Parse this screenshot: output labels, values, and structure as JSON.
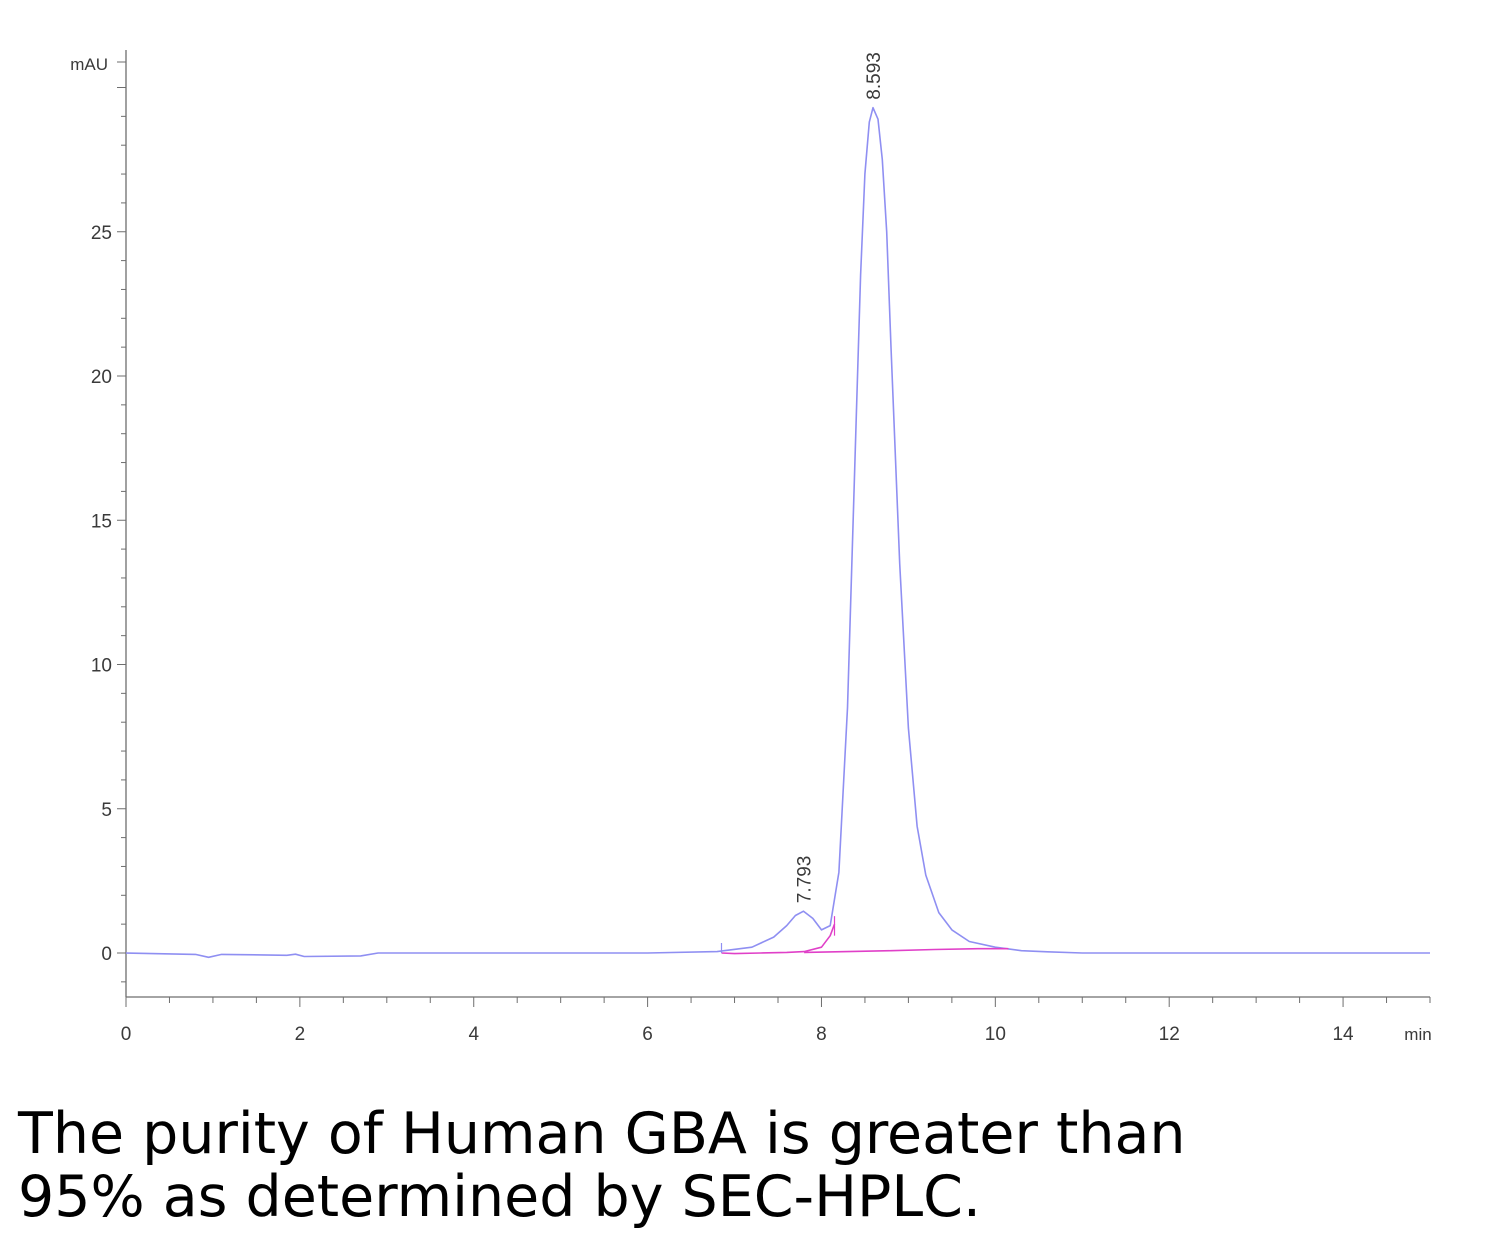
{
  "chart_data": {
    "type": "line",
    "title": "",
    "xlabel": "",
    "ylabel": "",
    "x_unit": "min",
    "y_unit": "mAU",
    "xlim": [
      0,
      15
    ],
    "ylim": [
      -1.5,
      31.5
    ],
    "x_ticks": [
      "0",
      "2",
      "4",
      "6",
      "8",
      "10",
      "12",
      "14"
    ],
    "y_ticks": [
      "0",
      "5",
      "10",
      "15",
      "20",
      "25"
    ],
    "grid": false,
    "legend": "none",
    "peak_labels": [
      {
        "text": "7.793",
        "x": 7.793,
        "y": 1.45
      },
      {
        "text": "8.593",
        "x": 8.593,
        "y": 29.3
      }
    ],
    "series": [
      {
        "color": "#8f8ff2",
        "x": [
          0,
          0.8,
          0.95,
          1.1,
          1.85,
          1.95,
          2.05,
          2.7,
          2.9,
          4.0,
          6.0,
          6.8,
          7.2,
          7.45,
          7.6,
          7.7,
          7.793,
          7.9,
          8.0,
          8.1,
          8.2,
          8.3,
          8.4,
          8.45,
          8.5,
          8.55,
          8.593,
          8.65,
          8.7,
          8.75,
          8.8,
          8.9,
          9.0,
          9.1,
          9.2,
          9.35,
          9.5,
          9.7,
          10.0,
          10.3,
          10.6,
          11.0,
          12.0,
          13.0,
          14.0,
          15.0
        ],
        "y": [
          0,
          -0.05,
          -0.15,
          -0.05,
          -0.08,
          -0.04,
          -0.12,
          -0.1,
          0,
          0,
          0,
          0.05,
          0.2,
          0.55,
          0.95,
          1.3,
          1.45,
          1.2,
          0.8,
          0.95,
          2.8,
          8.5,
          18.5,
          23.5,
          27.0,
          28.8,
          29.3,
          28.9,
          27.5,
          25.0,
          21.0,
          13.5,
          7.8,
          4.4,
          2.7,
          1.4,
          0.8,
          0.4,
          0.2,
          0.08,
          0.04,
          0,
          0,
          0,
          0,
          0
        ]
      },
      {
        "color": "#e040c8",
        "x": [
          6.85,
          7.0,
          7.3,
          7.6,
          7.8,
          8.0,
          8.1,
          8.15
        ],
        "y": [
          0,
          -0.02,
          0,
          0.02,
          0.05,
          0.2,
          0.6,
          1.0
        ]
      },
      {
        "color": "#e040c8",
        "x": [
          7.8,
          8.3,
          8.8,
          9.3,
          9.8,
          10.15
        ],
        "y": [
          0.02,
          0.05,
          0.08,
          0.12,
          0.15,
          0.15
        ]
      }
    ]
  },
  "caption": {
    "line1": "The purity of Human GBA is greater than",
    "line2": "95% as determined by SEC-HPLC."
  }
}
